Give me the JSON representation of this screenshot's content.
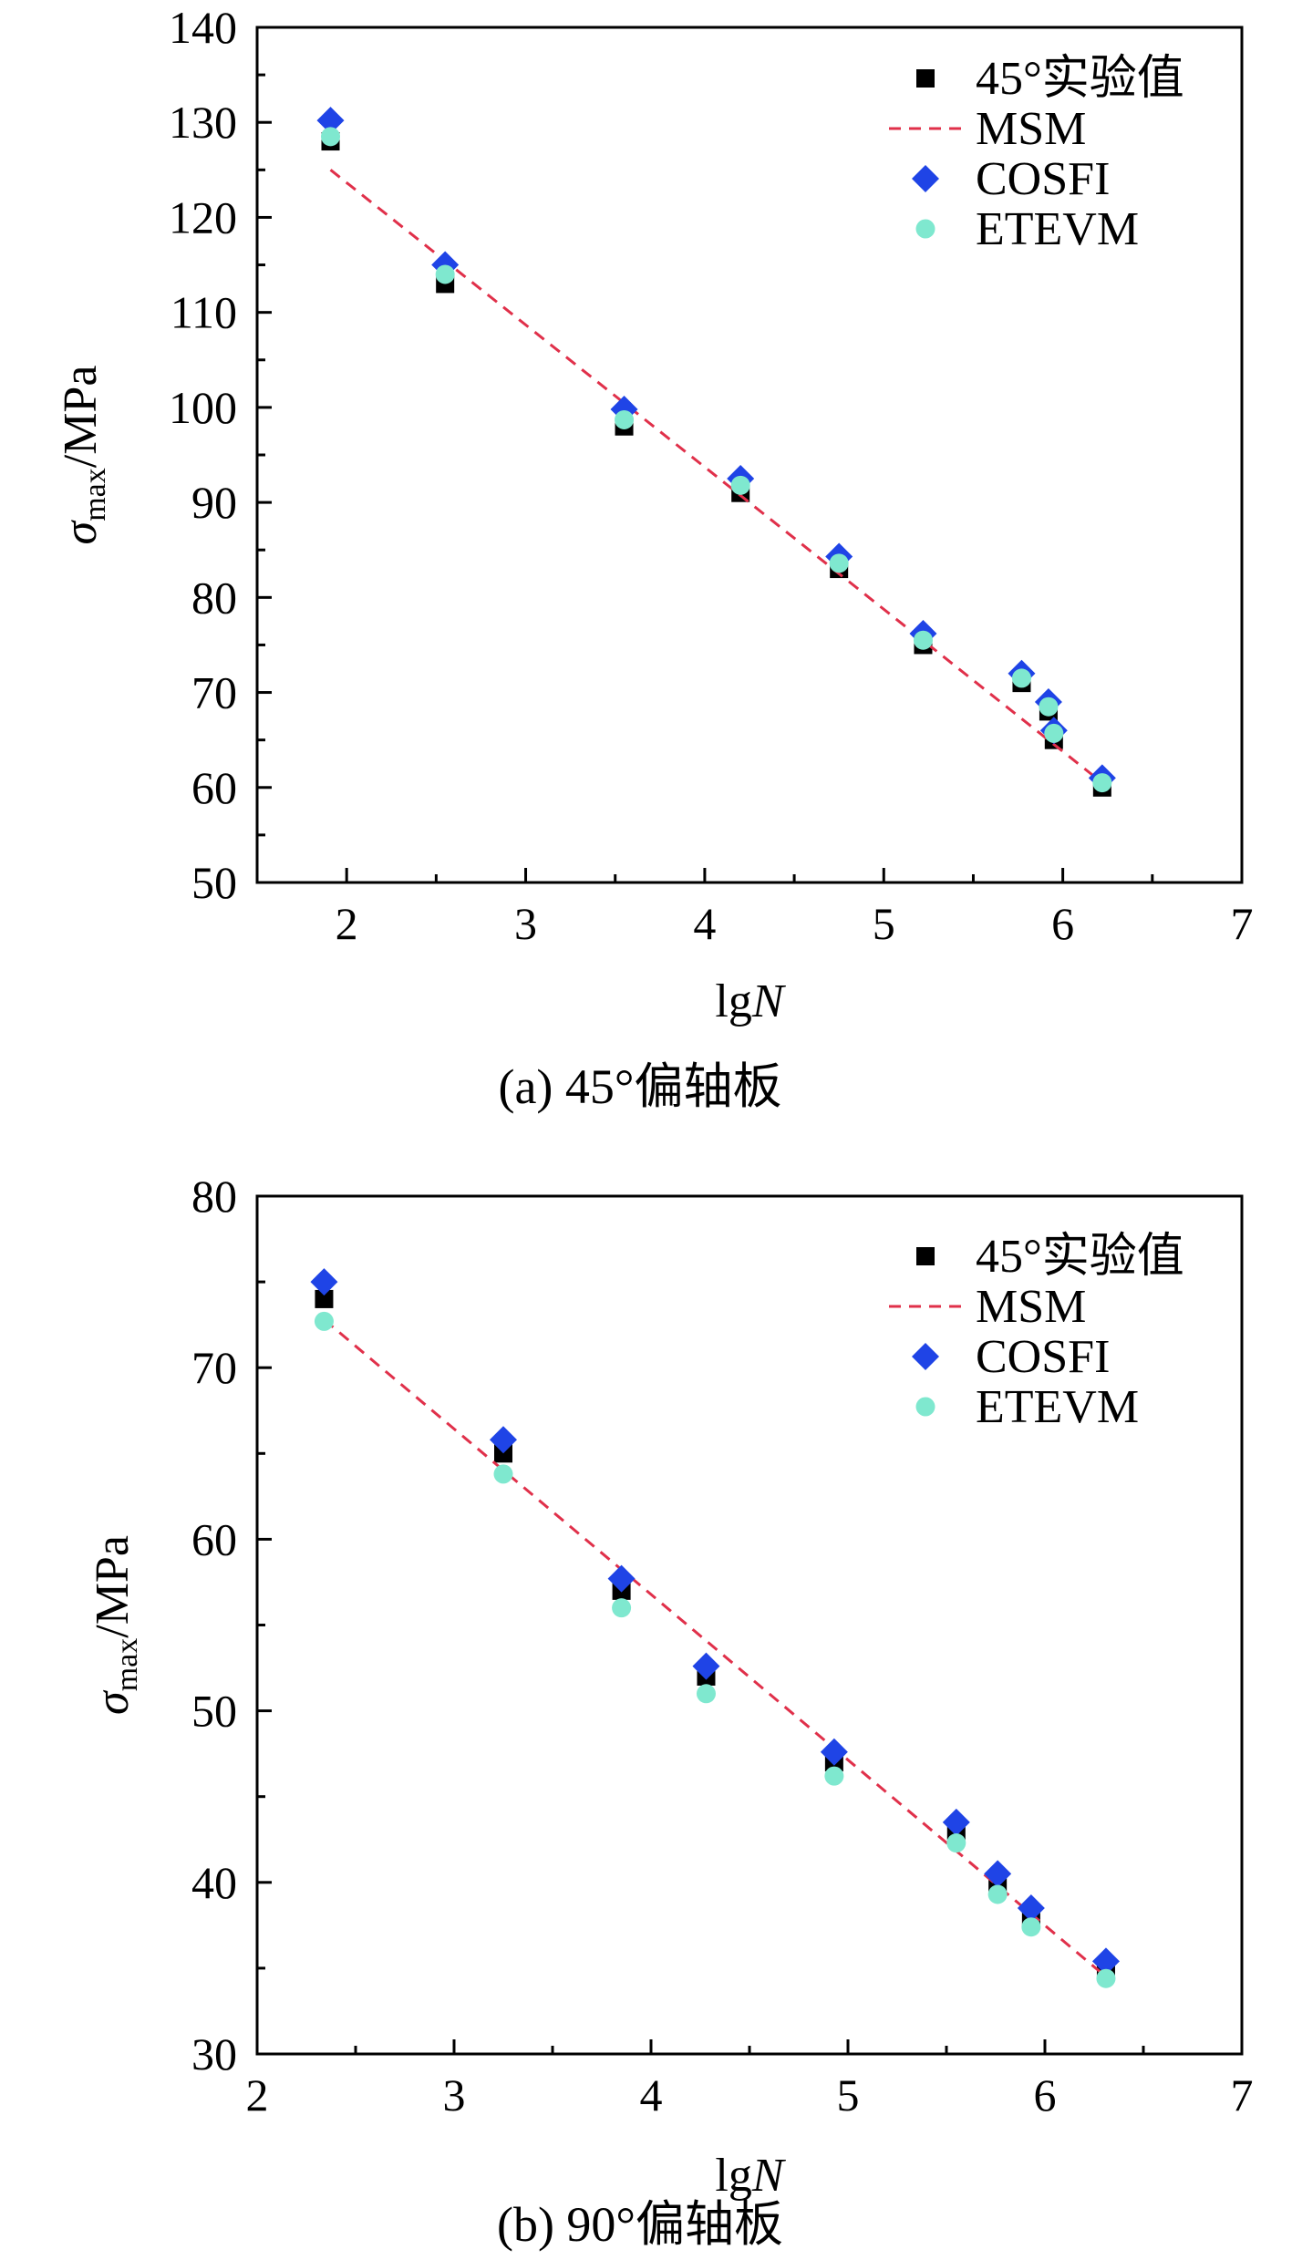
{
  "colors": {
    "experimental": "#000000",
    "msm": "#e0304a",
    "cosfi": "#1f44e6",
    "etevm": "#7fe8cf"
  },
  "chart_data": [
    {
      "type": "scatter",
      "panel": "a",
      "caption": "(a) 45°偏轴板",
      "xlabel_main": "lg",
      "xlabel_var": "N",
      "ylabel_symbol": "σ",
      "ylabel_subscript": "max",
      "ylabel_unit": "/MPa",
      "xlim": [
        1.5,
        7
      ],
      "ylim": [
        50,
        140
      ],
      "xticks": [
        2,
        3,
        4,
        5,
        6,
        7
      ],
      "yticks": [
        50,
        60,
        70,
        80,
        90,
        100,
        110,
        120,
        130,
        140
      ],
      "legend_position": "top-right",
      "series": [
        {
          "name": "45°实验值",
          "key": "experimental",
          "marker": "square",
          "x": [
            1.91,
            2.55,
            3.55,
            4.2,
            4.75,
            5.22,
            5.77,
            5.92,
            5.95,
            6.22
          ],
          "y": [
            128,
            113,
            98,
            91,
            83,
            75,
            71,
            68,
            65,
            60
          ]
        },
        {
          "name": "MSM",
          "key": "msm",
          "marker": "dashed-line",
          "x": [
            1.91,
            6.22
          ],
          "y": [
            125,
            60.5
          ]
        },
        {
          "name": "COSFI",
          "key": "cosfi",
          "marker": "diamond",
          "x": [
            1.91,
            2.55,
            3.55,
            4.2,
            4.75,
            5.22,
            5.77,
            5.92,
            5.95,
            6.22
          ],
          "y": [
            130.2,
            115,
            99.8,
            92.5,
            84.3,
            76.2,
            72,
            69,
            66,
            61
          ]
        },
        {
          "name": "ETEVM",
          "key": "etevm",
          "marker": "circle",
          "x": [
            1.91,
            2.55,
            3.55,
            4.2,
            4.75,
            5.22,
            5.77,
            5.92,
            5.95,
            6.22
          ],
          "y": [
            128.5,
            114,
            98.7,
            91.8,
            83.6,
            75.5,
            71.5,
            68.5,
            65.7,
            60.5
          ]
        }
      ]
    },
    {
      "type": "scatter",
      "panel": "b",
      "caption": "(b) 90°偏轴板",
      "xlabel_main": "lg",
      "xlabel_var": "N",
      "ylabel_symbol": "σ",
      "ylabel_subscript": "max",
      "ylabel_unit": "/MPa",
      "xlim": [
        2,
        7
      ],
      "ylim": [
        30,
        80
      ],
      "xticks": [
        2,
        3,
        4,
        5,
        6,
        7
      ],
      "yticks": [
        30,
        40,
        50,
        60,
        70,
        80
      ],
      "legend_position": "top-right",
      "series": [
        {
          "name": "45°实验值",
          "key": "experimental",
          "marker": "square",
          "x": [
            2.34,
            3.25,
            3.85,
            4.28,
            4.93,
            5.55,
            5.76,
            5.93,
            6.31
          ],
          "y": [
            74,
            65,
            57,
            52,
            47,
            43,
            40,
            38,
            35
          ]
        },
        {
          "name": "MSM",
          "key": "msm",
          "marker": "dashed-line",
          "x": [
            2.34,
            6.31
          ],
          "y": [
            72.8,
            34.5
          ]
        },
        {
          "name": "COSFI",
          "key": "cosfi",
          "marker": "diamond",
          "x": [
            2.34,
            3.25,
            3.85,
            4.28,
            4.93,
            5.55,
            5.76,
            5.93,
            6.31
          ],
          "y": [
            75,
            65.8,
            57.7,
            52.6,
            47.6,
            43.5,
            40.5,
            38.5,
            35.4
          ]
        },
        {
          "name": "ETEVM",
          "key": "etevm",
          "marker": "circle",
          "x": [
            2.34,
            3.25,
            3.85,
            4.28,
            4.93,
            5.55,
            5.76,
            5.93,
            6.31
          ],
          "y": [
            72.7,
            63.8,
            56,
            51,
            46.2,
            42.3,
            39.3,
            37.4,
            34.4
          ]
        }
      ]
    }
  ]
}
